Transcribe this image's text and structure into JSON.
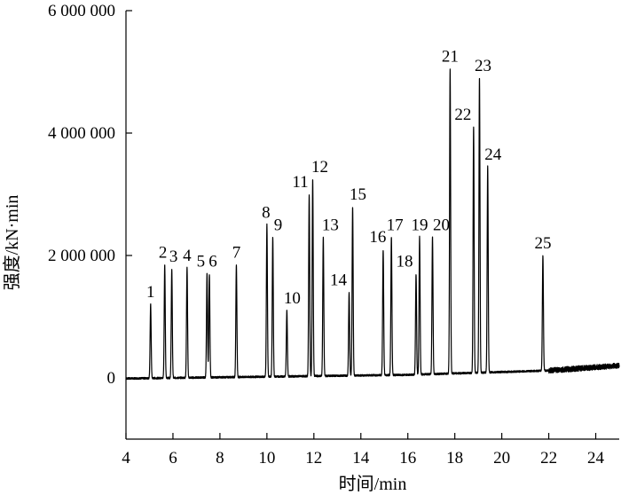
{
  "chart_data": {
    "type": "line",
    "title": "",
    "xlabel": "时间/min",
    "ylabel": "强度/kN·min",
    "xlim": [
      4,
      25
    ],
    "ylim": [
      -1000000,
      6000000
    ],
    "x_ticks": [
      4,
      6,
      8,
      10,
      12,
      14,
      16,
      18,
      20,
      22,
      24
    ],
    "x_tick_labels": [
      "4",
      "6",
      "8",
      "10",
      "12",
      "14",
      "16",
      "18",
      "20",
      "22",
      "24"
    ],
    "y_ticks": [
      0,
      2000000,
      4000000,
      6000000
    ],
    "y_tick_labels": [
      "0",
      "2 000 000",
      "4 000 000",
      "6 000 000"
    ],
    "grid": false,
    "legend": "none",
    "baseline": [
      {
        "x": 4.0,
        "y": -10000
      },
      {
        "x": 10.0,
        "y": 20000
      },
      {
        "x": 16.0,
        "y": 50000
      },
      {
        "x": 22.0,
        "y": 120000
      },
      {
        "x": 25.0,
        "y": 200000
      }
    ],
    "peaks": [
      {
        "label": "1",
        "time": 5.05,
        "intensity": 1200000
      },
      {
        "label": "2",
        "time": 5.65,
        "intensity": 1850000
      },
      {
        "label": "3",
        "time": 5.95,
        "intensity": 1780000
      },
      {
        "label": "4",
        "time": 6.6,
        "intensity": 1800000
      },
      {
        "label": "5",
        "time": 7.45,
        "intensity": 1700000
      },
      {
        "label": "6",
        "time": 7.55,
        "intensity": 1700000
      },
      {
        "label": "7",
        "time": 8.7,
        "intensity": 1850000
      },
      {
        "label": "8",
        "time": 10.0,
        "intensity": 2500000
      },
      {
        "label": "9",
        "time": 10.25,
        "intensity": 2300000
      },
      {
        "label": "10",
        "time": 10.85,
        "intensity": 1100000
      },
      {
        "label": "11",
        "time": 11.8,
        "intensity": 3000000
      },
      {
        "label": "12",
        "time": 11.95,
        "intensity": 3250000
      },
      {
        "label": "13",
        "time": 12.4,
        "intensity": 2300000
      },
      {
        "label": "14",
        "time": 13.5,
        "intensity": 1400000
      },
      {
        "label": "15",
        "time": 13.65,
        "intensity": 2800000
      },
      {
        "label": "16",
        "time": 14.95,
        "intensity": 2100000
      },
      {
        "label": "17",
        "time": 15.3,
        "intensity": 2300000
      },
      {
        "label": "18",
        "time": 16.35,
        "intensity": 1700000
      },
      {
        "label": "19",
        "time": 16.5,
        "intensity": 2300000
      },
      {
        "label": "20",
        "time": 17.05,
        "intensity": 2300000
      },
      {
        "label": "21",
        "time": 17.8,
        "intensity": 5050000
      },
      {
        "label": "22",
        "time": 18.8,
        "intensity": 4100000
      },
      {
        "label": "23",
        "time": 19.05,
        "intensity": 4900000
      },
      {
        "label": "24",
        "time": 19.4,
        "intensity": 3450000
      },
      {
        "label": "25",
        "time": 21.75,
        "intensity": 2000000
      }
    ]
  }
}
